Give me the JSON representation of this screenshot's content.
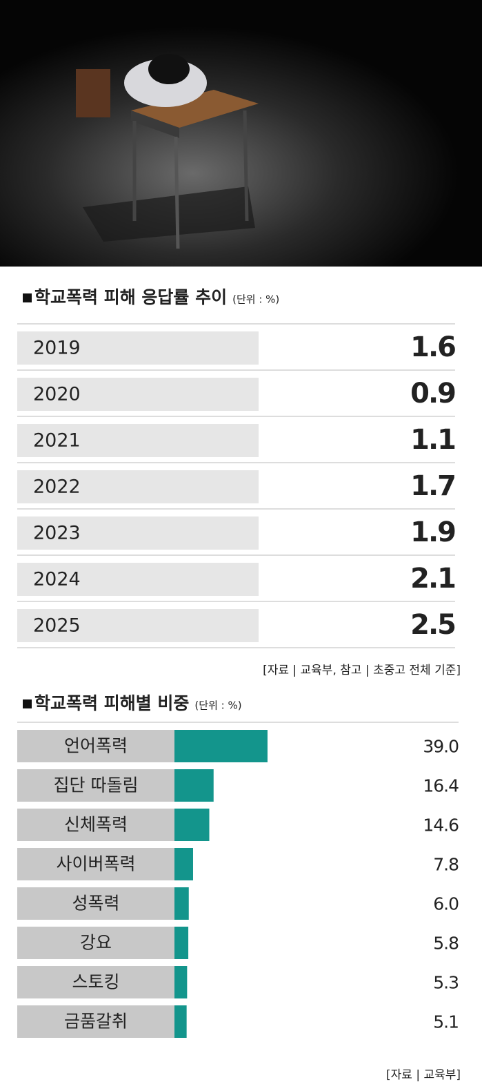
{
  "chart_data": [
    {
      "type": "table",
      "title": "학교폭력 피해 응답률 추이",
      "unit": "(단위 : %)",
      "categories": [
        "2019",
        "2020",
        "2021",
        "2022",
        "2023",
        "2024",
        "2025"
      ],
      "values": [
        1.6,
        0.9,
        1.1,
        1.7,
        1.9,
        2.1,
        2.5
      ],
      "color": "#13958c",
      "source": "[자료 | 교육부, 참고 | 초중고 전체 기준]"
    },
    {
      "type": "bar",
      "title": "학교폭력 피해별 비중",
      "unit": "(단위 : %)",
      "categories": [
        "언어폭력",
        "집단 따돌림",
        "신체폭력",
        "사이버폭력",
        "성폭력",
        "강요",
        "스토킹",
        "금품갈취"
      ],
      "values": [
        39.0,
        16.4,
        14.6,
        7.8,
        6.0,
        5.8,
        5.3,
        5.1
      ],
      "value_labels": [
        "39.0",
        "16.4",
        "14.6",
        "7.8",
        "6.0",
        "5.8",
        "5.3",
        "5.1"
      ],
      "color": "#13958c",
      "source": "[자료 | 교육부]"
    }
  ]
}
